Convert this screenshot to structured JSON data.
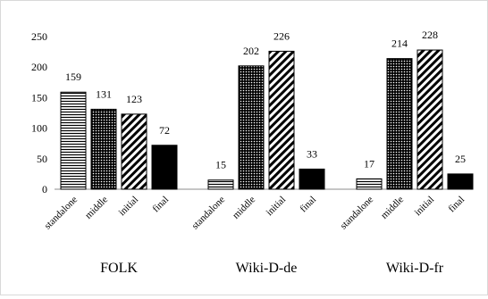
{
  "chart_data": {
    "type": "bar",
    "groups": [
      "FOLK",
      "Wiki-D-de",
      "Wiki-D-fr"
    ],
    "categories": [
      "standalone",
      "middle",
      "initial",
      "final"
    ],
    "series": [
      {
        "values": [
          159,
          131,
          123,
          72
        ]
      },
      {
        "values": [
          15,
          202,
          226,
          33
        ]
      },
      {
        "values": [
          17,
          214,
          228,
          25
        ]
      }
    ],
    "yticks": [
      "0",
      "50",
      "100",
      "150",
      "200",
      "250"
    ],
    "ylim": [
      0,
      250
    ],
    "grid": false,
    "legend": "none",
    "patterns": [
      "horizontal-stripes",
      "dots",
      "diagonal-stripes",
      "solid-black"
    ]
  }
}
